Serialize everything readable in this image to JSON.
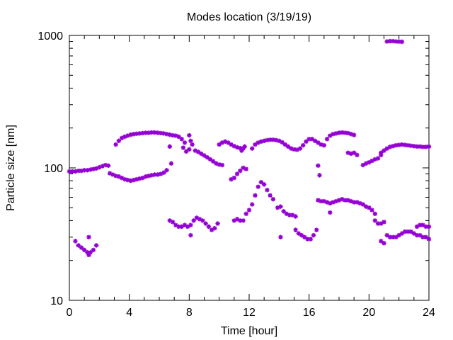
{
  "chart_data": {
    "type": "scatter",
    "title": "Modes location (3/19/19)",
    "xlabel": "Time [hour]",
    "ylabel": "Particle size [nm]",
    "xlim": [
      0,
      24
    ],
    "ylim": [
      10,
      1000
    ],
    "y_scale": "log",
    "grid": false,
    "marker_color": "#9400d3",
    "x_ticks": [
      0,
      4,
      8,
      12,
      16,
      20,
      24
    ],
    "y_ticks": [
      10,
      100,
      1000
    ],
    "x_tick_labels": [
      "0",
      "4",
      "8",
      "12",
      "16",
      "20",
      "24"
    ],
    "y_tick_labels": [
      "10",
      "100",
      "1000"
    ],
    "segments": [
      {
        "x": [
          0.0,
          0.2,
          0.4,
          0.6,
          0.8,
          1.0,
          1.2,
          1.4,
          1.6,
          1.8,
          2.0,
          2.2,
          2.4,
          2.6
        ],
        "y": [
          94,
          94,
          94,
          95,
          95,
          96,
          96,
          97,
          98,
          99,
          101,
          103,
          105,
          104
        ]
      },
      {
        "x": [
          2.7,
          2.9,
          3.1,
          3.3,
          3.5,
          3.7,
          3.9,
          4.1,
          4.3,
          4.5,
          4.7,
          4.9,
          5.1,
          5.3,
          5.5,
          5.7,
          5.9,
          6.1,
          6.3,
          6.5
        ],
        "y": [
          91,
          89,
          87,
          86,
          84,
          82,
          81,
          80,
          81,
          82,
          83,
          84,
          86,
          87,
          88,
          89,
          89,
          90,
          92,
          96
        ]
      },
      {
        "x": [
          3.1,
          3.3,
          3.5,
          3.7,
          3.9,
          4.1,
          4.3,
          4.5,
          4.7,
          4.9,
          5.1,
          5.3,
          5.5,
          5.7,
          5.9,
          6.1,
          6.3,
          6.5,
          6.7,
          6.9,
          7.1,
          7.3,
          7.5,
          7.7
        ],
        "y": [
          150,
          160,
          168,
          172,
          175,
          178,
          180,
          181,
          182,
          183,
          184,
          184,
          185,
          185,
          184,
          183,
          182,
          180,
          178,
          176,
          175,
          172,
          165,
          155
        ]
      },
      {
        "x": [
          7.6,
          7.8,
          8.0,
          8.2
        ],
        "y": [
          142,
          133,
          138,
          150
        ]
      },
      {
        "x": [
          8.0,
          8.1
        ],
        "y": [
          176,
          160
        ]
      },
      {
        "x": [
          6.7,
          6.8
        ],
        "y": [
          145,
          108
        ]
      },
      {
        "x": [
          8.4,
          8.6,
          8.8,
          9.0,
          9.2,
          9.4,
          9.6,
          9.8,
          10.0,
          10.2
        ],
        "y": [
          135,
          132,
          128,
          124,
          120,
          116,
          112,
          108,
          106,
          105
        ]
      },
      {
        "x": [
          10.0,
          10.2,
          10.4,
          10.6,
          10.8,
          11.0,
          11.2,
          11.4,
          11.6
        ],
        "y": [
          150,
          155,
          158,
          155,
          150,
          146,
          143,
          141,
          140
        ]
      },
      {
        "x": [
          10.8,
          11.0,
          11.2,
          11.4,
          11.6,
          11.8
        ],
        "y": [
          82,
          84,
          90,
          95,
          100,
          98
        ]
      },
      {
        "x": [
          11.5,
          11.7
        ],
        "y": [
          135,
          145
        ]
      },
      {
        "x": [
          12.2,
          12.4,
          12.6,
          12.8,
          13.0,
          13.2,
          13.4,
          13.6,
          13.8,
          14.0,
          14.2,
          14.4,
          14.6,
          14.8,
          15.0,
          15.2
        ],
        "y": [
          140,
          150,
          155,
          158,
          160,
          162,
          163,
          163,
          162,
          160,
          156,
          150,
          145,
          140,
          138,
          137
        ]
      },
      {
        "x": [
          15.4,
          15.6,
          15.8,
          16.0,
          16.2,
          16.4,
          16.6,
          16.8,
          17.0
        ],
        "y": [
          140,
          148,
          158,
          165,
          165,
          160,
          155,
          150,
          148
        ]
      },
      {
        "x": [
          16.6,
          16.7
        ],
        "y": [
          104,
          88
        ]
      },
      {
        "x": [
          17.2,
          17.4,
          17.6,
          17.8,
          18.0,
          18.2,
          18.4,
          18.6,
          18.8,
          19.0
        ],
        "y": [
          165,
          175,
          180,
          182,
          184,
          185,
          184,
          183,
          180,
          177
        ]
      },
      {
        "x": [
          18.6,
          18.8,
          19.0,
          19.2
        ],
        "y": [
          130,
          128,
          130,
          125
        ]
      },
      {
        "x": [
          19.6,
          19.8,
          20.0,
          20.2,
          20.4,
          20.6,
          20.8
        ],
        "y": [
          105,
          108,
          110,
          113,
          116,
          118,
          125
        ]
      },
      {
        "x": [
          20.8,
          21.0,
          21.2,
          21.4,
          21.6,
          21.8,
          22.0,
          22.2,
          22.4,
          22.6,
          22.8,
          23.0,
          23.2,
          23.4,
          23.6,
          23.8,
          24.0
        ],
        "y": [
          130,
          135,
          140,
          144,
          146,
          148,
          149,
          150,
          149,
          148,
          147,
          146,
          145,
          145,
          144,
          144,
          145
        ]
      },
      {
        "x": [
          21.2,
          21.4,
          21.6,
          21.8,
          22.0,
          22.2
        ],
        "y": [
          900,
          905,
          905,
          900,
          898,
          895
        ]
      },
      {
        "x": [
          0.4,
          0.6,
          0.8,
          1.0,
          1.2,
          1.4,
          1.6,
          1.8
        ],
        "y": [
          28,
          26,
          25,
          24,
          23,
          23,
          24,
          26
        ]
      },
      {
        "x": [
          1.3
        ],
        "y": [
          30
        ]
      },
      {
        "x": [
          1.3
        ],
        "y": [
          22
        ]
      },
      {
        "x": [
          6.7,
          6.9,
          7.1,
          7.3,
          7.5,
          7.7,
          7.9,
          8.1,
          8.3,
          8.5,
          8.7,
          8.9,
          9.1,
          9.3,
          9.5,
          9.7,
          9.9
        ],
        "y": [
          40,
          39,
          37,
          36,
          36,
          37,
          36,
          37,
          40,
          42,
          41,
          40,
          38,
          36,
          34,
          35,
          38
        ]
      },
      {
        "x": [
          8.1
        ],
        "y": [
          31
        ]
      },
      {
        "x": [
          11.0,
          11.2,
          11.4,
          11.6,
          11.8,
          12.0,
          12.2,
          12.4,
          12.6,
          12.8,
          13.0,
          13.2,
          13.4,
          13.6
        ],
        "y": [
          40,
          41,
          40,
          40,
          45,
          48,
          53,
          62,
          72,
          78,
          75,
          68,
          62,
          58
        ]
      },
      {
        "x": [
          13.9,
          14.1,
          14.3,
          14.5,
          14.7,
          14.9,
          15.1
        ],
        "y": [
          50,
          51,
          47,
          45,
          44,
          44,
          43
        ]
      },
      {
        "x": [
          14.1
        ],
        "y": [
          30
        ]
      },
      {
        "x": [
          15.1,
          15.3,
          15.5,
          15.7,
          15.9,
          16.1,
          16.3,
          16.5
        ],
        "y": [
          34,
          32,
          31,
          30,
          29,
          29,
          31,
          34
        ]
      },
      {
        "x": [
          16.6,
          16.8,
          17.0,
          17.2,
          17.4,
          17.6,
          17.8,
          18.0,
          18.2,
          18.4,
          18.6,
          18.8,
          19.0,
          19.2,
          19.4,
          19.6,
          19.8,
          20.0,
          20.2,
          20.4
        ],
        "y": [
          57,
          56,
          56,
          55,
          54,
          55,
          56,
          57,
          58,
          57,
          57,
          56,
          55,
          55,
          54,
          53,
          51,
          50,
          48,
          45
        ]
      },
      {
        "x": [
          17.4
        ],
        "y": [
          46
        ]
      },
      {
        "x": [
          20.4,
          20.6,
          20.8,
          21.0
        ],
        "y": [
          40,
          38,
          38,
          39
        ]
      },
      {
        "x": [
          20.8,
          21.0
        ],
        "y": [
          28,
          27
        ]
      },
      {
        "x": [
          21.2,
          21.4,
          21.6,
          21.8,
          22.0,
          22.2,
          22.4,
          22.6,
          22.8,
          23.0,
          23.2,
          23.4,
          23.6,
          23.8,
          24.0
        ],
        "y": [
          31,
          30,
          30,
          30,
          31,
          32,
          33,
          33,
          33,
          32,
          31,
          31,
          30,
          30,
          29
        ]
      },
      {
        "x": [
          23.2,
          23.4,
          23.6,
          23.8,
          24.0
        ],
        "y": [
          36,
          37,
          37,
          36,
          36
        ]
      }
    ]
  }
}
